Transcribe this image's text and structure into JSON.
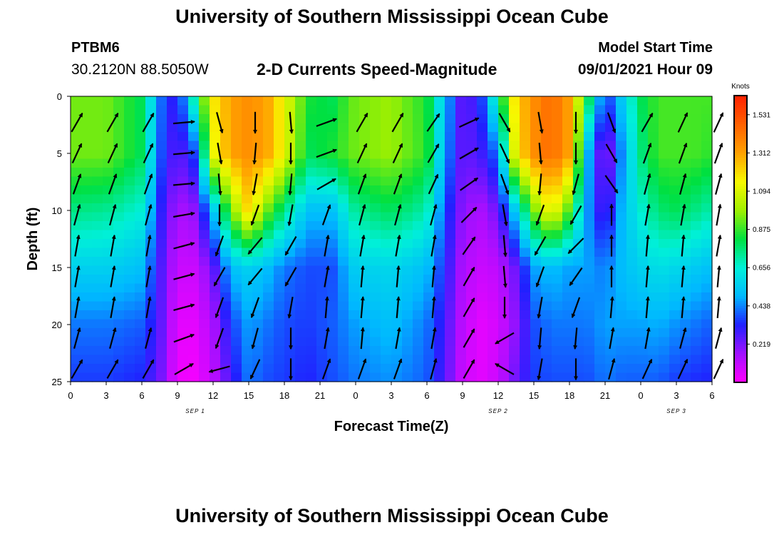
{
  "header": {
    "main_title": "University of Southern Mississippi Ocean Cube",
    "station_id": "PTBM6",
    "coordinates": "30.2120N  88.5050W",
    "plot_title": "2-D Currents Speed-Magnitude",
    "model_start_label": "Model Start Time",
    "model_start_value": "09/01/2021 Hour 09"
  },
  "footer": {
    "title": "University of Southern Mississippi Ocean Cube"
  },
  "chart_data": {
    "type": "heatmap",
    "xlabel": "Forecast Time(Z)",
    "ylabel": "Depth (ft)",
    "x_tick_labels": [
      "0",
      "3",
      "6",
      "9",
      "12",
      "15",
      "18",
      "21",
      "0",
      "3",
      "6",
      "9",
      "12",
      "15",
      "18",
      "21",
      "0",
      "3",
      "6"
    ],
    "x_hours_range": [
      0,
      54
    ],
    "y_tick_labels": [
      "0",
      "5",
      "10",
      "15",
      "20",
      "25"
    ],
    "ylim": [
      0,
      25
    ],
    "y_inverted": true,
    "date_labels": [
      {
        "text": "SEP 1",
        "hour": 10.5
      },
      {
        "text": "SEP 2",
        "hour": 36
      },
      {
        "text": "SEP 3",
        "hour": 51
      }
    ],
    "colorbar": {
      "unit_label": "Knots",
      "tick_labels": [
        "1.531",
        "1.312",
        "1.094",
        "0.875",
        "0.656",
        "0.438",
        "0.219"
      ],
      "range": [
        0,
        1.75
      ],
      "colors": [
        "#ff00ff",
        "#a010ff",
        "#2020ff",
        "#00b8ff",
        "#00f0d8",
        "#00e040",
        "#a0f000",
        "#f8f800",
        "#ffa000",
        "#ff6000",
        "#ff2000"
      ]
    },
    "speed_profiles_hours": [
      0,
      3,
      6,
      7.5,
      9,
      10.5,
      12,
      13.5,
      15,
      16.5,
      18,
      20,
      22,
      24,
      27,
      30,
      31.5,
      33,
      34.5,
      36,
      37.5,
      39,
      40.5,
      42,
      43.5,
      45,
      46.5,
      48,
      49.5,
      51,
      52.5,
      54
    ],
    "speed_profiles_depths_ft": [
      0,
      5,
      10,
      15,
      20,
      25
    ],
    "speed_profiles_knots": [
      [
        1.0,
        1.0,
        0.8,
        0.6,
        0.45,
        0.38
      ],
      [
        1.0,
        1.0,
        0.78,
        0.6,
        0.45,
        0.38
      ],
      [
        0.85,
        0.85,
        0.7,
        0.55,
        0.42,
        0.35
      ],
      [
        0.45,
        0.42,
        0.35,
        0.3,
        0.28,
        0.25
      ],
      [
        0.3,
        0.25,
        0.15,
        0.1,
        0.05,
        0.03
      ],
      [
        0.8,
        0.4,
        0.2,
        0.1,
        0.05,
        0.02
      ],
      [
        1.25,
        1.2,
        0.55,
        0.25,
        0.15,
        0.12
      ],
      [
        1.4,
        1.4,
        1.0,
        0.55,
        0.38,
        0.3
      ],
      [
        1.45,
        1.45,
        1.3,
        0.6,
        0.5,
        0.45
      ],
      [
        1.4,
        1.4,
        1.0,
        0.55,
        0.45,
        0.4
      ],
      [
        1.2,
        1.2,
        0.8,
        0.45,
        0.4,
        0.38
      ],
      [
        0.9,
        0.85,
        0.55,
        0.4,
        0.38,
        0.35
      ],
      [
        0.85,
        0.9,
        0.55,
        0.4,
        0.42,
        0.4
      ],
      [
        1.0,
        1.0,
        0.78,
        0.6,
        0.5,
        0.45
      ],
      [
        1.05,
        1.05,
        0.85,
        0.62,
        0.55,
        0.48
      ],
      [
        0.9,
        0.92,
        0.75,
        0.55,
        0.45,
        0.42
      ],
      [
        0.55,
        0.5,
        0.4,
        0.35,
        0.3,
        0.28
      ],
      [
        0.25,
        0.25,
        0.2,
        0.15,
        0.12,
        0.1
      ],
      [
        0.35,
        0.3,
        0.15,
        0.1,
        0.05,
        0.05
      ],
      [
        0.8,
        0.45,
        0.25,
        0.12,
        0.08,
        0.1
      ],
      [
        1.3,
        1.25,
        0.6,
        0.25,
        0.2,
        0.25
      ],
      [
        1.45,
        1.45,
        1.0,
        0.5,
        0.4,
        0.38
      ],
      [
        1.55,
        1.55,
        1.25,
        0.55,
        0.45,
        0.4
      ],
      [
        1.4,
        1.4,
        0.95,
        0.5,
        0.45,
        0.4
      ],
      [
        0.9,
        0.55,
        0.5,
        0.5,
        0.45,
        0.4
      ],
      [
        0.35,
        0.15,
        0.25,
        0.45,
        0.5,
        0.45
      ],
      [
        0.6,
        0.5,
        0.55,
        0.55,
        0.5,
        0.42
      ],
      [
        0.85,
        0.8,
        0.7,
        0.6,
        0.5,
        0.42
      ],
      [
        0.95,
        0.95,
        0.82,
        0.65,
        0.52,
        0.42
      ],
      [
        0.95,
        0.95,
        0.85,
        0.62,
        0.48,
        0.38
      ],
      [
        0.95,
        0.95,
        0.8,
        0.58,
        0.45,
        0.36
      ],
      [
        0.95,
        0.92,
        0.75,
        0.55,
        0.42,
        0.35
      ]
    ],
    "vector_grid_hours": [
      0,
      3,
      6,
      9,
      12,
      15,
      18,
      21,
      24,
      27,
      30,
      33,
      36,
      39,
      42,
      45,
      48,
      51,
      54
    ],
    "vector_grid_depths_ft": [
      2.3,
      5,
      7.7,
      10.4,
      13.1,
      15.8,
      18.5,
      21.2,
      23.9
    ],
    "vector_directions_deg": [
      [
        30,
        30,
        30,
        85,
        165,
        180,
        175,
        70,
        30,
        30,
        35,
        65,
        150,
        170,
        180,
        160,
        30,
        25,
        25
      ],
      [
        25,
        25,
        25,
        85,
        170,
        185,
        180,
        70,
        25,
        25,
        30,
        60,
        155,
        175,
        180,
        150,
        20,
        20,
        20
      ],
      [
        20,
        20,
        20,
        85,
        175,
        190,
        185,
        60,
        20,
        20,
        25,
        55,
        160,
        185,
        195,
        145,
        15,
        15,
        15
      ],
      [
        15,
        15,
        15,
        80,
        180,
        200,
        190,
        20,
        15,
        15,
        15,
        45,
        170,
        200,
        210,
        0,
        10,
        10,
        10
      ],
      [
        10,
        10,
        10,
        75,
        200,
        220,
        210,
        10,
        10,
        10,
        10,
        35,
        175,
        210,
        225,
        0,
        5,
        5,
        10
      ],
      [
        10,
        10,
        10,
        75,
        210,
        220,
        210,
        10,
        5,
        5,
        5,
        30,
        175,
        200,
        215,
        0,
        5,
        5,
        5
      ],
      [
        10,
        10,
        10,
        75,
        200,
        200,
        190,
        5,
        5,
        5,
        5,
        30,
        180,
        190,
        200,
        5,
        5,
        5,
        5
      ],
      [
        15,
        15,
        15,
        70,
        200,
        195,
        180,
        10,
        5,
        10,
        10,
        30,
        240,
        185,
        185,
        10,
        10,
        15,
        15
      ],
      [
        30,
        30,
        30,
        60,
        255,
        205,
        180,
        20,
        20,
        20,
        15,
        30,
        300,
        190,
        180,
        15,
        25,
        25,
        25
      ]
    ]
  }
}
